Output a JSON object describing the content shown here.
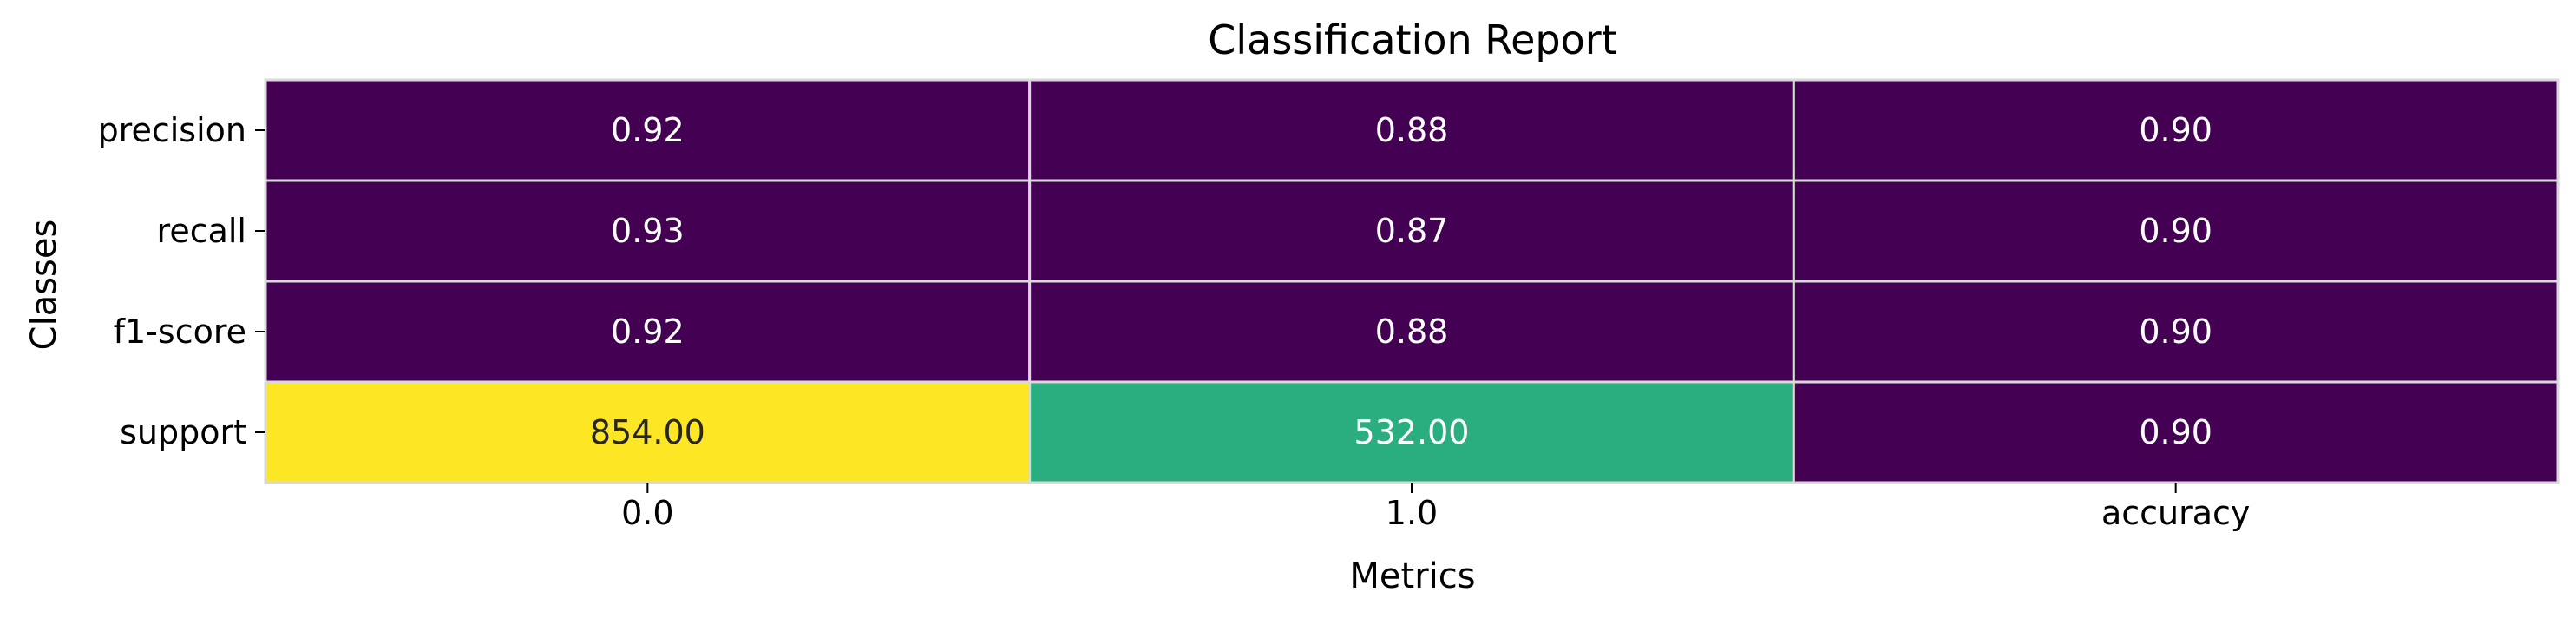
{
  "chart_data": {
    "type": "heatmap",
    "title": "Classification Report",
    "xlabel": "Metrics",
    "ylabel": "Classes",
    "x_categories": [
      "0.0",
      "1.0",
      "accuracy"
    ],
    "y_categories": [
      "precision",
      "recall",
      "f1-score",
      "support"
    ],
    "values": [
      [
        0.92,
        0.88,
        0.9
      ],
      [
        0.93,
        0.87,
        0.9
      ],
      [
        0.92,
        0.88,
        0.9
      ],
      [
        854.0,
        532.0,
        0.9
      ]
    ],
    "cell_labels": [
      [
        "0.92",
        "0.88",
        "0.90"
      ],
      [
        "0.93",
        "0.87",
        "0.90"
      ],
      [
        "0.92",
        "0.88",
        "0.90"
      ],
      [
        "854.00",
        "532.00",
        "0.90"
      ]
    ],
    "colormap": "viridis",
    "value_range": [
      0.87,
      854.0
    ],
    "colorbar": false,
    "grid": false,
    "colors": {
      "low": "#440154",
      "mid": "#29af7f",
      "high": "#fde725",
      "cell_border": "#d9d9d9",
      "label_light": "#ffffff",
      "label_dark": "#262626",
      "text": "#000000"
    }
  }
}
